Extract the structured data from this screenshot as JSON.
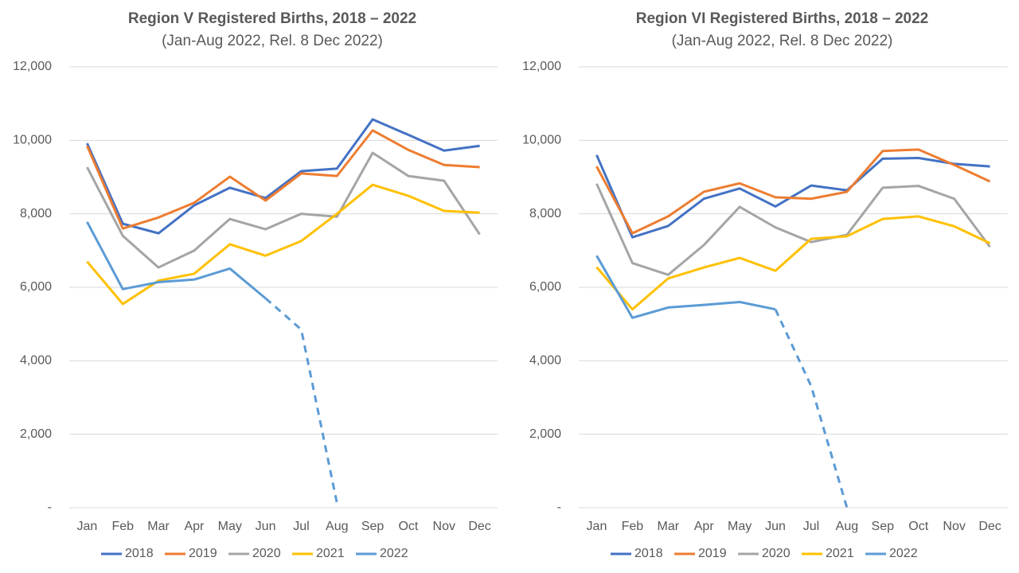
{
  "chart_data": [
    {
      "type": "line",
      "title": "Region V Registered Births, 2018 – 2022",
      "subtitle": "(Jan-Aug 2022, Rel. 8 Dec 2022)",
      "categories": [
        "Jan",
        "Feb",
        "Mar",
        "Apr",
        "May",
        "Jun",
        "Jul",
        "Aug",
        "Sep",
        "Oct",
        "Nov",
        "Dec"
      ],
      "ylim": [
        0,
        12000
      ],
      "yticks": [
        {
          "value": 0,
          "label": "-"
        },
        {
          "value": 2000,
          "label": "2,000"
        },
        {
          "value": 4000,
          "label": "4,000"
        },
        {
          "value": 6000,
          "label": "6,000"
        },
        {
          "value": 8000,
          "label": "8,000"
        },
        {
          "value": 10000,
          "label": "10,000"
        },
        {
          "value": 12000,
          "label": "12,000"
        }
      ],
      "grid": true,
      "legend": "bottom",
      "series": [
        {
          "name": "2018",
          "color": "#4472c4",
          "values": [
            9920,
            7730,
            7470,
            8230,
            8710,
            8430,
            9160,
            9230,
            10570,
            10150,
            9720,
            9850
          ]
        },
        {
          "name": "2019",
          "color": "#ed7d31",
          "values": [
            9850,
            7600,
            7900,
            8300,
            9010,
            8360,
            9100,
            9030,
            10270,
            9740,
            9330,
            9270
          ]
        },
        {
          "name": "2020",
          "color": "#a5a5a5",
          "values": [
            9270,
            7400,
            6540,
            7000,
            7860,
            7580,
            8000,
            7920,
            9660,
            9030,
            8900,
            7440
          ]
        },
        {
          "name": "2021",
          "color": "#ffc000",
          "values": [
            6700,
            5545,
            6180,
            6370,
            7170,
            6860,
            7260,
            8000,
            8790,
            8490,
            8080,
            8030
          ]
        },
        {
          "name": "2022",
          "color": "#5b9bd5",
          "values": [
            7780,
            5950,
            6140,
            6210,
            6510,
            5700,
            4850,
            130,
            null,
            null,
            null,
            null
          ],
          "dashed_from": 5
        }
      ]
    },
    {
      "type": "line",
      "title": "Region VI Registered Births, 2018 – 2022",
      "subtitle": "(Jan-Aug 2022, Rel. 8 Dec 2022)",
      "categories": [
        "Jan",
        "Feb",
        "Mar",
        "Apr",
        "May",
        "Jun",
        "Jul",
        "Aug",
        "Sep",
        "Oct",
        "Nov",
        "Dec"
      ],
      "ylim": [
        0,
        12000
      ],
      "yticks": [
        {
          "value": 0,
          "label": "-"
        },
        {
          "value": 2000,
          "label": "2,000"
        },
        {
          "value": 4000,
          "label": "4,000"
        },
        {
          "value": 6000,
          "label": "6,000"
        },
        {
          "value": 8000,
          "label": "8,000"
        },
        {
          "value": 10000,
          "label": "10,000"
        },
        {
          "value": 12000,
          "label": "12,000"
        }
      ],
      "grid": true,
      "legend": "bottom",
      "series": [
        {
          "name": "2018",
          "color": "#4472c4",
          "values": [
            9600,
            7360,
            7670,
            8410,
            8690,
            8200,
            8770,
            8640,
            9500,
            9520,
            9360,
            9290
          ]
        },
        {
          "name": "2019",
          "color": "#ed7d31",
          "values": [
            9290,
            7470,
            7930,
            8600,
            8830,
            8450,
            8410,
            8600,
            9710,
            9750,
            9330,
            8880
          ]
        },
        {
          "name": "2020",
          "color": "#a5a5a5",
          "values": [
            8820,
            6660,
            6340,
            7150,
            8190,
            7630,
            7230,
            7430,
            8710,
            8760,
            8410,
            7100
          ]
        },
        {
          "name": "2021",
          "color": "#ffc000",
          "values": [
            6550,
            5400,
            6240,
            6540,
            6800,
            6450,
            7320,
            7390,
            7860,
            7930,
            7660,
            7200
          ]
        },
        {
          "name": "2022",
          "color": "#5b9bd5",
          "values": [
            6860,
            5170,
            5450,
            5520,
            5600,
            5400,
            3310,
            0,
            null,
            null,
            null,
            null
          ],
          "dashed_from": 5
        }
      ]
    }
  ]
}
